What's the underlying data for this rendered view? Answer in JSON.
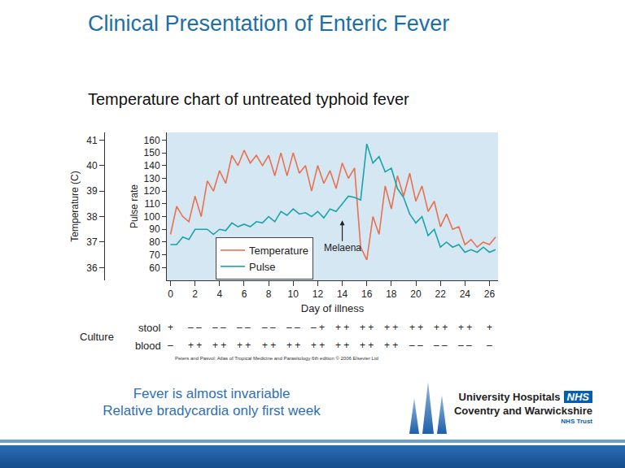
{
  "slide": {
    "title": "Clinical Presentation of Enteric Fever",
    "notes": [
      "Fever is almost invariable",
      "Relative bradycardia only first week"
    ],
    "logo": {
      "name": "University Hospitals",
      "badge": "NHS",
      "place": "Coventry and Warwickshire",
      "trust": "NHS Trust"
    }
  },
  "chart_data": {
    "type": "line",
    "title": "Temperature chart of untreated typhoid fever",
    "x_label": "Day of illness",
    "y_label": "Temperature (C)",
    "y2_label": "Pulse rate",
    "x": [
      0,
      0.5,
      1,
      1.5,
      2,
      2.5,
      3,
      3.5,
      4,
      4.5,
      5,
      5.5,
      6,
      6.5,
      7,
      7.5,
      8,
      8.5,
      9,
      9.5,
      10,
      10.5,
      11,
      11.5,
      12,
      12.5,
      13,
      13.5,
      14,
      14.5,
      15,
      15.5,
      16,
      16.5,
      17,
      17.5,
      18,
      18.5,
      19,
      19.5,
      20,
      20.5,
      21,
      21.5,
      22,
      22.5,
      23,
      23.5,
      24,
      24.5,
      25,
      25.5,
      26,
      26.5
    ],
    "series": [
      {
        "name": "Temperature",
        "color": "#e8714f",
        "values": [
          37.3,
          38.4,
          38.0,
          37.8,
          38.8,
          38.0,
          39.4,
          39.0,
          39.8,
          39.3,
          40.4,
          40.0,
          40.6,
          40.1,
          40.4,
          40.0,
          40.4,
          39.6,
          40.5,
          39.6,
          40.5,
          39.7,
          40.0,
          39.0,
          40.0,
          39.3,
          39.8,
          39.1,
          40.1,
          39.5,
          39.9,
          36.8,
          36.3,
          38.0,
          37.3,
          39.2,
          38.3,
          39.6,
          38.8,
          39.7,
          38.6,
          39.2,
          38.2,
          38.6,
          37.6,
          38.1,
          37.5,
          37.6,
          36.9,
          37.1,
          36.8,
          37.0,
          36.9,
          37.2
        ]
      },
      {
        "name": "Pulse",
        "color": "#1aa3a8",
        "axis": "y2",
        "values": [
          78,
          78,
          84,
          82,
          90,
          90,
          90,
          86,
          90,
          89,
          95,
          92,
          94,
          92,
          96,
          95,
          100,
          96,
          104,
          101,
          106,
          102,
          103,
          100,
          104,
          99,
          106,
          104,
          110,
          116,
          115,
          113,
          157,
          142,
          147,
          135,
          138,
          122,
          115,
          102,
          95,
          100,
          85,
          90,
          76,
          80,
          76,
          78,
          72,
          74,
          72,
          76,
          72,
          74
        ]
      }
    ],
    "xlim": [
      -0.3,
      26.7
    ],
    "xticks": [
      0,
      2,
      4,
      6,
      8,
      10,
      12,
      14,
      16,
      18,
      20,
      22,
      24,
      26
    ],
    "ylim": [
      35.5,
      41.3
    ],
    "yticks": [
      36,
      37,
      38,
      39,
      40,
      41
    ],
    "y2lim": [
      50,
      166
    ],
    "y2ticks": [
      60,
      70,
      80,
      90,
      100,
      110,
      120,
      130,
      140,
      150,
      160
    ],
    "grid": false,
    "legend": "lower left",
    "annotations": [
      {
        "text": "Melaena",
        "x": 14,
        "y": 97,
        "axis": "y2"
      }
    ],
    "culture": {
      "label": "Culture",
      "x": [
        0,
        2,
        4,
        6,
        8,
        10,
        12,
        14,
        16,
        18,
        20,
        22,
        24,
        26
      ],
      "rows": [
        {
          "name": "stool",
          "values": [
            "+",
            "– –",
            "– –",
            "– –",
            "– –",
            "– –",
            "– +",
            "+ +",
            "+ +",
            "+ +",
            "+ +",
            "+ +",
            "+ +",
            "+"
          ]
        },
        {
          "name": "blood",
          "values": [
            "–",
            "+ +",
            "+ +",
            "+ +",
            "+ +",
            "+ +",
            "+ +",
            "+ +",
            "+ +",
            "+ +",
            "– –",
            "– –",
            "– –",
            "–"
          ]
        }
      ]
    },
    "source": "Peters and Pasvol: Atlas of Tropical Medicine and Parasitology 6th edition © 2006 Elsevier Ltd"
  }
}
